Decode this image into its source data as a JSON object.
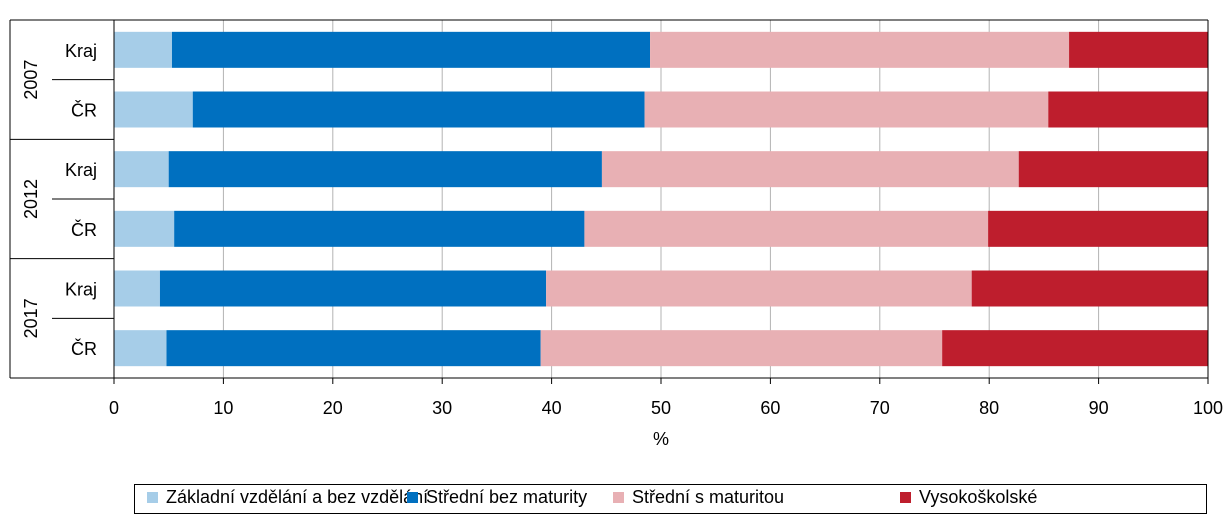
{
  "chart_data": {
    "type": "bar",
    "orientation": "horizontal",
    "stacked": true,
    "groups": [
      {
        "label": "2007",
        "rows": [
          "Kraj",
          "ČR"
        ]
      },
      {
        "label": "2012",
        "rows": [
          "Kraj",
          "ČR"
        ]
      },
      {
        "label": "2017",
        "rows": [
          "Kraj",
          "ČR"
        ]
      }
    ],
    "series": [
      {
        "name": "Základní vzdělání a bez vzdělání",
        "color": "#a6cde8",
        "values": [
          5.3,
          7.2,
          5.0,
          5.5,
          4.2,
          4.8
        ]
      },
      {
        "name": "Střední bez maturity",
        "color": "#0070c0",
        "values": [
          43.7,
          41.3,
          39.6,
          37.5,
          35.3,
          34.2
        ]
      },
      {
        "name": "Střední s maturitou",
        "color": "#e8b0b4",
        "values": [
          38.3,
          36.9,
          38.1,
          36.9,
          38.9,
          36.7
        ]
      },
      {
        "name": "Vysokoškolské",
        "color": "#be1e2d",
        "values": [
          12.7,
          14.6,
          17.3,
          20.1,
          21.6,
          24.3
        ]
      }
    ],
    "xlabel": "%",
    "xlim": [
      0,
      100
    ],
    "xticks": [
      0,
      10,
      20,
      30,
      40,
      50,
      60,
      70,
      80,
      90,
      100
    ],
    "grid": true,
    "legend_position": "bottom"
  }
}
